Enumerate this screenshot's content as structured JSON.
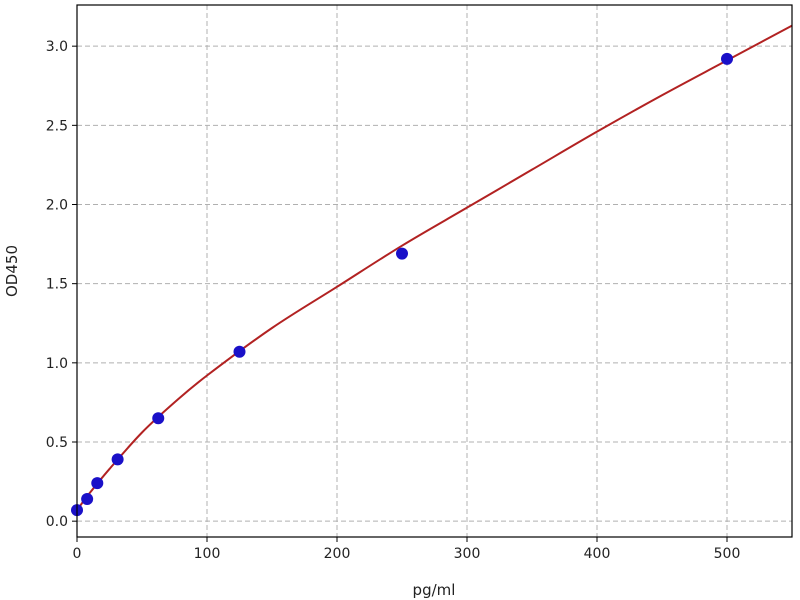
{
  "chart_data": {
    "type": "scatter",
    "title": "",
    "xlabel": "pg/ml",
    "ylabel": "OD450",
    "xlim": [
      0,
      550
    ],
    "ylim": [
      -0.1,
      3.26
    ],
    "xticks": [
      0,
      100,
      200,
      300,
      400,
      500
    ],
    "yticks": [
      0.0,
      0.5,
      1.0,
      1.5,
      2.0,
      2.5,
      3.0
    ],
    "xtick_labels": [
      "0",
      "100",
      "200",
      "300",
      "400",
      "500"
    ],
    "ytick_labels": [
      "0.0",
      "0.5",
      "1.0",
      "1.5",
      "2.0",
      "2.5",
      "3.0"
    ],
    "grid": true,
    "series": [
      {
        "kind": "points",
        "color": "#1a10c8",
        "x": [
          0,
          7.8,
          15.6,
          31.25,
          62.5,
          125,
          250,
          500
        ],
        "y": [
          0.07,
          0.14,
          0.24,
          0.39,
          0.65,
          1.07,
          1.69,
          2.92
        ]
      },
      {
        "kind": "fit-curve",
        "color": "#b22222",
        "x": [
          0,
          10,
          25,
          50,
          75,
          100,
          150,
          200,
          250,
          300,
          350,
          400,
          450,
          500,
          550
        ],
        "y": [
          0.07,
          0.18,
          0.33,
          0.56,
          0.75,
          0.92,
          1.22,
          1.48,
          1.74,
          1.98,
          2.22,
          2.46,
          2.69,
          2.91,
          3.13
        ]
      }
    ]
  }
}
